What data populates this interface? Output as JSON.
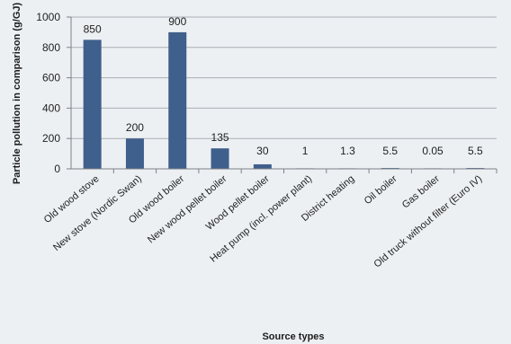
{
  "chart_data": {
    "type": "bar",
    "categories": [
      "Old wood stove",
      "New stove (Nordic Swan)",
      "Old wood boiler",
      "New wood pellet boiler",
      "Wood pellet boiler",
      "Heat pump (incl. power plant)",
      "District heating",
      "Oil boiler",
      "Gas boiler",
      "Old truck without filter (Euro IV)"
    ],
    "values": [
      850,
      200,
      900,
      135,
      30,
      1,
      1.3,
      5.5,
      0.05,
      5.5
    ],
    "data_labels": [
      "850",
      "200",
      "900",
      "135",
      "30",
      "1",
      "1.3",
      "5.5",
      "0.05",
      "5.5"
    ],
    "title": "",
    "xlabel": "Source types",
    "ylabel": "Particle pollution in comparison (g/GJ)",
    "ylim": [
      0,
      1000
    ],
    "yticks": [
      0,
      200,
      400,
      600,
      800,
      1000
    ],
    "grid": true,
    "legend": "none",
    "colors": {
      "bar": "#3f5f8c",
      "grid": "#a9adb3",
      "axis": "#7d8186",
      "background": "#edf0f3"
    }
  }
}
